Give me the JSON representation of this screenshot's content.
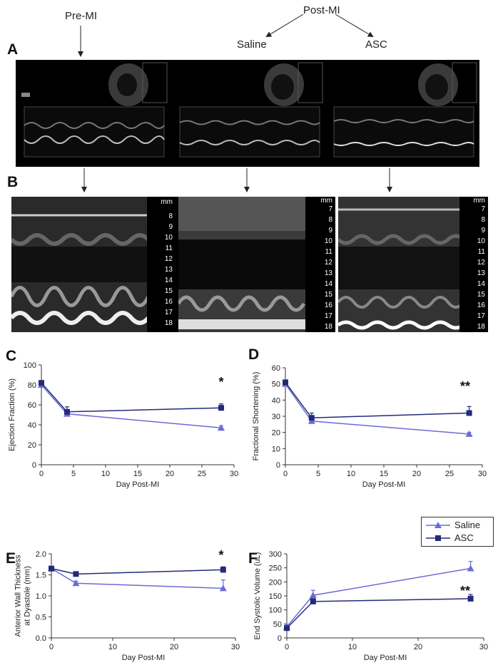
{
  "panel_a": {
    "letter": "A",
    "pre_mi_label": "Pre-MI",
    "post_mi_label": "Post-MI",
    "saline_label": "Saline",
    "asc_label": "ASC"
  },
  "panel_b": {
    "letter": "B",
    "ruler_unit": "mm",
    "rulers": [
      [
        "8",
        "9",
        "10",
        "11",
        "12",
        "13",
        "14",
        "15",
        "16",
        "17",
        "18"
      ],
      [
        "7",
        "8",
        "9",
        "10",
        "11",
        "12",
        "13",
        "14",
        "15",
        "16",
        "17",
        "18"
      ],
      [
        "7",
        "8",
        "9",
        "10",
        "11",
        "12",
        "13",
        "14",
        "15",
        "16",
        "17",
        "18"
      ]
    ]
  },
  "legend": {
    "entries": [
      "Saline",
      "ASC"
    ],
    "colors": {
      "Saline": "#6b6bd6",
      "ASC": "#232a7a"
    }
  },
  "chart_data": [
    {
      "panel": "C",
      "type": "line",
      "xlabel": "Day Post-MI",
      "ylabel": "Ejection Fraction (%)",
      "xlim": [
        0,
        30
      ],
      "ylim": [
        0,
        100
      ],
      "xticks": [
        "0",
        "5",
        "10",
        "15",
        "20",
        "25",
        "30"
      ],
      "yticks": [
        "0",
        "20",
        "40",
        "60",
        "80",
        "100"
      ],
      "annotation": "*",
      "series": [
        {
          "name": "Saline",
          "x": [
            0,
            4,
            28
          ],
          "y": [
            80,
            51,
            37
          ],
          "err": [
            0,
            2,
            2
          ]
        },
        {
          "name": "ASC",
          "x": [
            0,
            4,
            28
          ],
          "y": [
            82,
            53,
            57
          ],
          "err": [
            0,
            5,
            4
          ]
        }
      ]
    },
    {
      "panel": "D",
      "type": "line",
      "xlabel": "Day Post-MI",
      "ylabel": "Fractional Shortening (%)",
      "xlim": [
        0,
        30
      ],
      "ylim": [
        0,
        60
      ],
      "xticks": [
        "0",
        "5",
        "10",
        "15",
        "20",
        "25",
        "30"
      ],
      "yticks": [
        "0",
        "10",
        "20",
        "30",
        "40",
        "50",
        "60"
      ],
      "annotation": "**",
      "series": [
        {
          "name": "Saline",
          "x": [
            0,
            4,
            28
          ],
          "y": [
            50,
            27,
            19
          ],
          "err": [
            0,
            2,
            1
          ]
        },
        {
          "name": "ASC",
          "x": [
            0,
            4,
            28
          ],
          "y": [
            51,
            29,
            32
          ],
          "err": [
            0,
            3,
            4
          ]
        }
      ]
    },
    {
      "panel": "E",
      "type": "line",
      "xlabel": "Day Post-MI",
      "ylabel": "Anterior Wall Thickness at Dyastole (mm)",
      "xlim": [
        0,
        30
      ],
      "ylim": [
        0,
        2.0
      ],
      "xticks": [
        "0",
        "10",
        "20",
        "30"
      ],
      "yticks": [
        "0.0",
        "0.5",
        "1.0",
        "1.5",
        "2.0"
      ],
      "annotation": "*",
      "series": [
        {
          "name": "Saline",
          "x": [
            0,
            4,
            28
          ],
          "y": [
            1.65,
            1.3,
            1.18
          ],
          "err": [
            0.05,
            0.05,
            0.2
          ]
        },
        {
          "name": "ASC",
          "x": [
            0,
            4,
            28
          ],
          "y": [
            1.65,
            1.52,
            1.62
          ],
          "err": [
            0.05,
            0.05,
            0.07
          ]
        }
      ]
    },
    {
      "panel": "F",
      "type": "line",
      "xlabel": "Day Post-MI",
      "ylabel": "End Systolic Volume (uL)",
      "xlim": [
        0,
        30
      ],
      "ylim": [
        0,
        300
      ],
      "xticks": [
        "0",
        "10",
        "20",
        "30"
      ],
      "yticks": [
        "0",
        "50",
        "100",
        "150",
        "200",
        "250",
        "300"
      ],
      "annotation": "**",
      "series": [
        {
          "name": "Saline",
          "x": [
            0,
            4,
            28
          ],
          "y": [
            40,
            152,
            248
          ],
          "err": [
            8,
            18,
            25
          ]
        },
        {
          "name": "ASC",
          "x": [
            0,
            4,
            28
          ],
          "y": [
            35,
            130,
            140
          ],
          "err": [
            8,
            10,
            15
          ]
        }
      ]
    }
  ]
}
